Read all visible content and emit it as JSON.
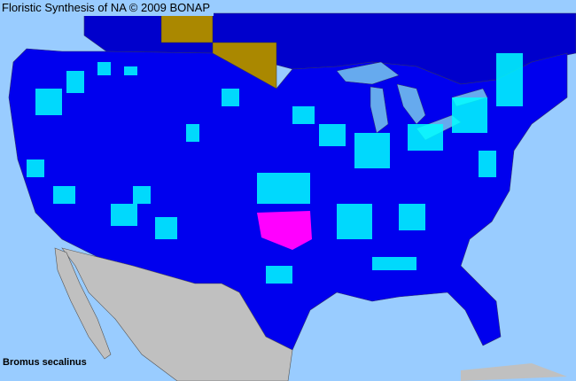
{
  "header": {
    "title": "Floristic Synthesis of NA © 2009 BONAP"
  },
  "species_label": "Bromus secalinus",
  "colors": {
    "ocean": "#99ccff",
    "us_land": "#0000ee",
    "canada_land": "#0000cc",
    "mexico_land": "#c0c0c0",
    "present_county": "#00ffff",
    "noxious_county": "#ff00ff",
    "province_highlight": "#aa8800",
    "lakes": "#66aaee",
    "borders": "#333366"
  }
}
